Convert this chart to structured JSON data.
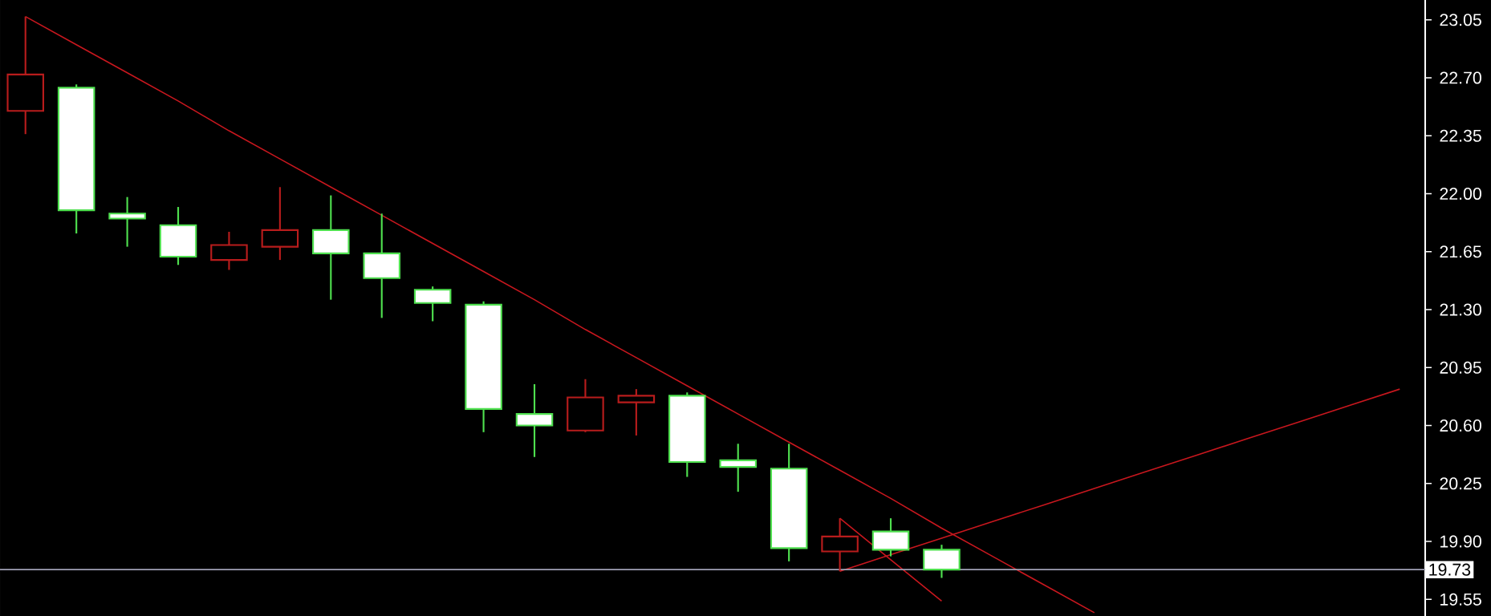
{
  "chart_data": {
    "type": "candlestick",
    "categories": [
      null,
      null,
      null,
      null,
      null,
      null,
      null,
      null,
      null,
      null,
      null,
      null,
      null,
      null,
      null,
      null,
      null,
      null,
      null,
      null,
      null,
      null,
      null,
      null,
      null,
      null,
      null,
      null
    ],
    "ohlc": [
      [
        22.5,
        23.07,
        22.36,
        22.72
      ],
      [
        22.64,
        22.66,
        21.76,
        21.9
      ],
      [
        21.88,
        21.98,
        21.68,
        21.85
      ],
      [
        21.81,
        21.92,
        21.57,
        21.62
      ],
      [
        21.6,
        21.77,
        21.54,
        21.69
      ],
      [
        21.68,
        22.04,
        21.6,
        21.78
      ],
      [
        21.78,
        21.99,
        21.36,
        21.64
      ],
      [
        21.64,
        21.88,
        21.25,
        21.49
      ],
      [
        21.42,
        21.44,
        21.23,
        21.34
      ],
      [
        21.33,
        21.35,
        20.56,
        20.7
      ],
      [
        20.67,
        20.85,
        20.41,
        20.6
      ],
      [
        20.57,
        20.88,
        20.56,
        20.77
      ],
      [
        20.74,
        20.82,
        20.54,
        20.78
      ],
      [
        20.78,
        20.8,
        20.29,
        20.38
      ],
      [
        20.39,
        20.49,
        20.2,
        20.35
      ],
      [
        20.34,
        20.49,
        19.78,
        19.86
      ],
      [
        19.84,
        20.04,
        19.72,
        19.93
      ],
      [
        19.96,
        20.04,
        19.81,
        19.85
      ],
      [
        19.85,
        19.88,
        19.68,
        19.73
      ],
      null,
      null,
      null,
      null,
      null,
      null,
      null,
      null,
      null
    ],
    "series": [
      {
        "type": "line",
        "color": "#c8171e",
        "values": [
          23.07,
          22.9,
          22.73,
          22.56,
          22.38,
          22.21,
          22.04,
          21.87,
          21.7,
          21.53,
          21.36,
          21.18,
          21.01,
          20.84,
          20.67,
          20.5,
          20.33,
          20.16,
          19.98,
          19.81,
          19.64,
          19.47,
          null,
          null,
          null,
          null,
          null,
          null
        ]
      },
      {
        "type": "line",
        "color": "#c8171e",
        "values": [
          null,
          null,
          null,
          null,
          null,
          null,
          null,
          null,
          null,
          null,
          null,
          null,
          null,
          null,
          null,
          null,
          19.72,
          19.82,
          19.92,
          20.02,
          20.12,
          20.22,
          20.32,
          20.42,
          20.52,
          20.62,
          20.72,
          20.82
        ]
      },
      {
        "type": "line",
        "color": "#c8171e",
        "values": [
          null,
          null,
          null,
          null,
          null,
          null,
          null,
          null,
          null,
          null,
          null,
          null,
          null,
          null,
          null,
          null,
          20.04,
          19.79,
          19.54,
          null,
          null,
          null,
          null,
          null,
          null,
          null,
          null,
          null
        ]
      }
    ],
    "ylim": [
      19.45,
      23.17
    ],
    "yticks": [
      23.05,
      {
        "value": 22.7,
        "label": "22.70"
      },
      22.35,
      {
        "value": 22.0,
        "label": "22.00"
      },
      21.65,
      {
        "value": 21.3,
        "label": "21.30"
      },
      20.95,
      {
        "value": 20.6,
        "label": "20.60"
      },
      20.25,
      {
        "value": 19.9,
        "label": "19.90"
      },
      19.55
    ],
    "ref_lines": [
      {
        "axis": "y",
        "value": 19.73,
        "label": "19.73",
        "color": "#a0a0b4"
      }
    ]
  }
}
